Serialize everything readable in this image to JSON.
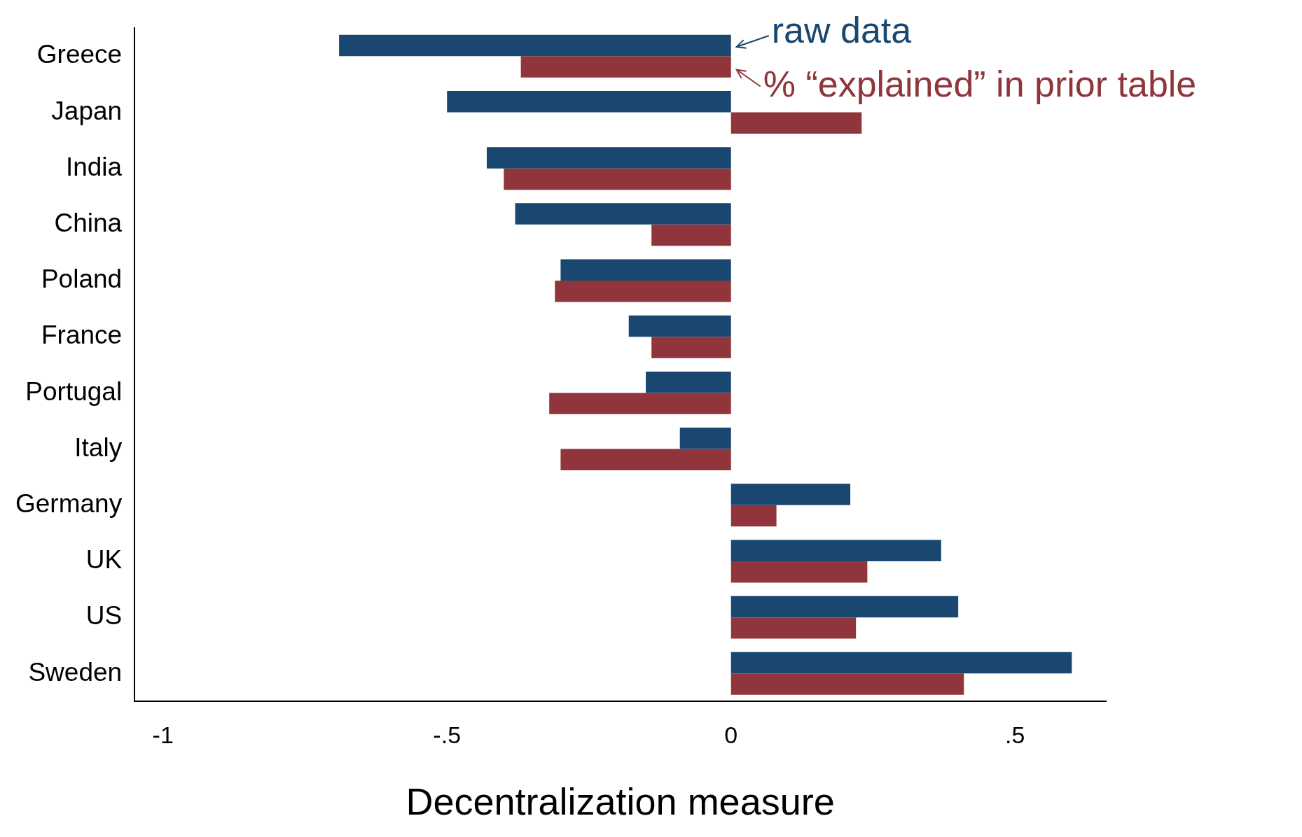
{
  "chart_data": {
    "type": "bar",
    "orientation": "horizontal",
    "xlabel": "Decentralization measure",
    "categories": [
      "Greece",
      "Japan",
      "India",
      "China",
      "Poland",
      "France",
      "Portugal",
      "Italy",
      "Germany",
      "UK",
      "US",
      "Sweden"
    ],
    "series": [
      {
        "color": "#1a476f",
        "values": [
          -0.69,
          -0.5,
          -0.43,
          -0.38,
          -0.3,
          -0.18,
          -0.15,
          -0.09,
          0.21,
          0.37,
          0.4,
          0.6
        ]
      },
      {
        "color": "#90353b",
        "values": [
          -0.37,
          0.23,
          -0.4,
          -0.14,
          -0.31,
          -0.14,
          -0.32,
          -0.3,
          0.08,
          0.24,
          0.22,
          0.41
        ]
      }
    ],
    "xlim": [
      -1.05,
      0.66
    ],
    "xticks": [
      {
        "value": -1,
        "label": "-1"
      },
      {
        "value": -0.5,
        "label": "-.5"
      },
      0,
      {
        "value": 0.5,
        "label": ".5"
      }
    ],
    "annotations": [
      {
        "text": "raw data",
        "x": 0,
        "y": "Greece"
      },
      {
        "text": "% “explained” in prior table",
        "x": 0,
        "y": "Greece"
      }
    ],
    "legend": false,
    "grid": false
  }
}
